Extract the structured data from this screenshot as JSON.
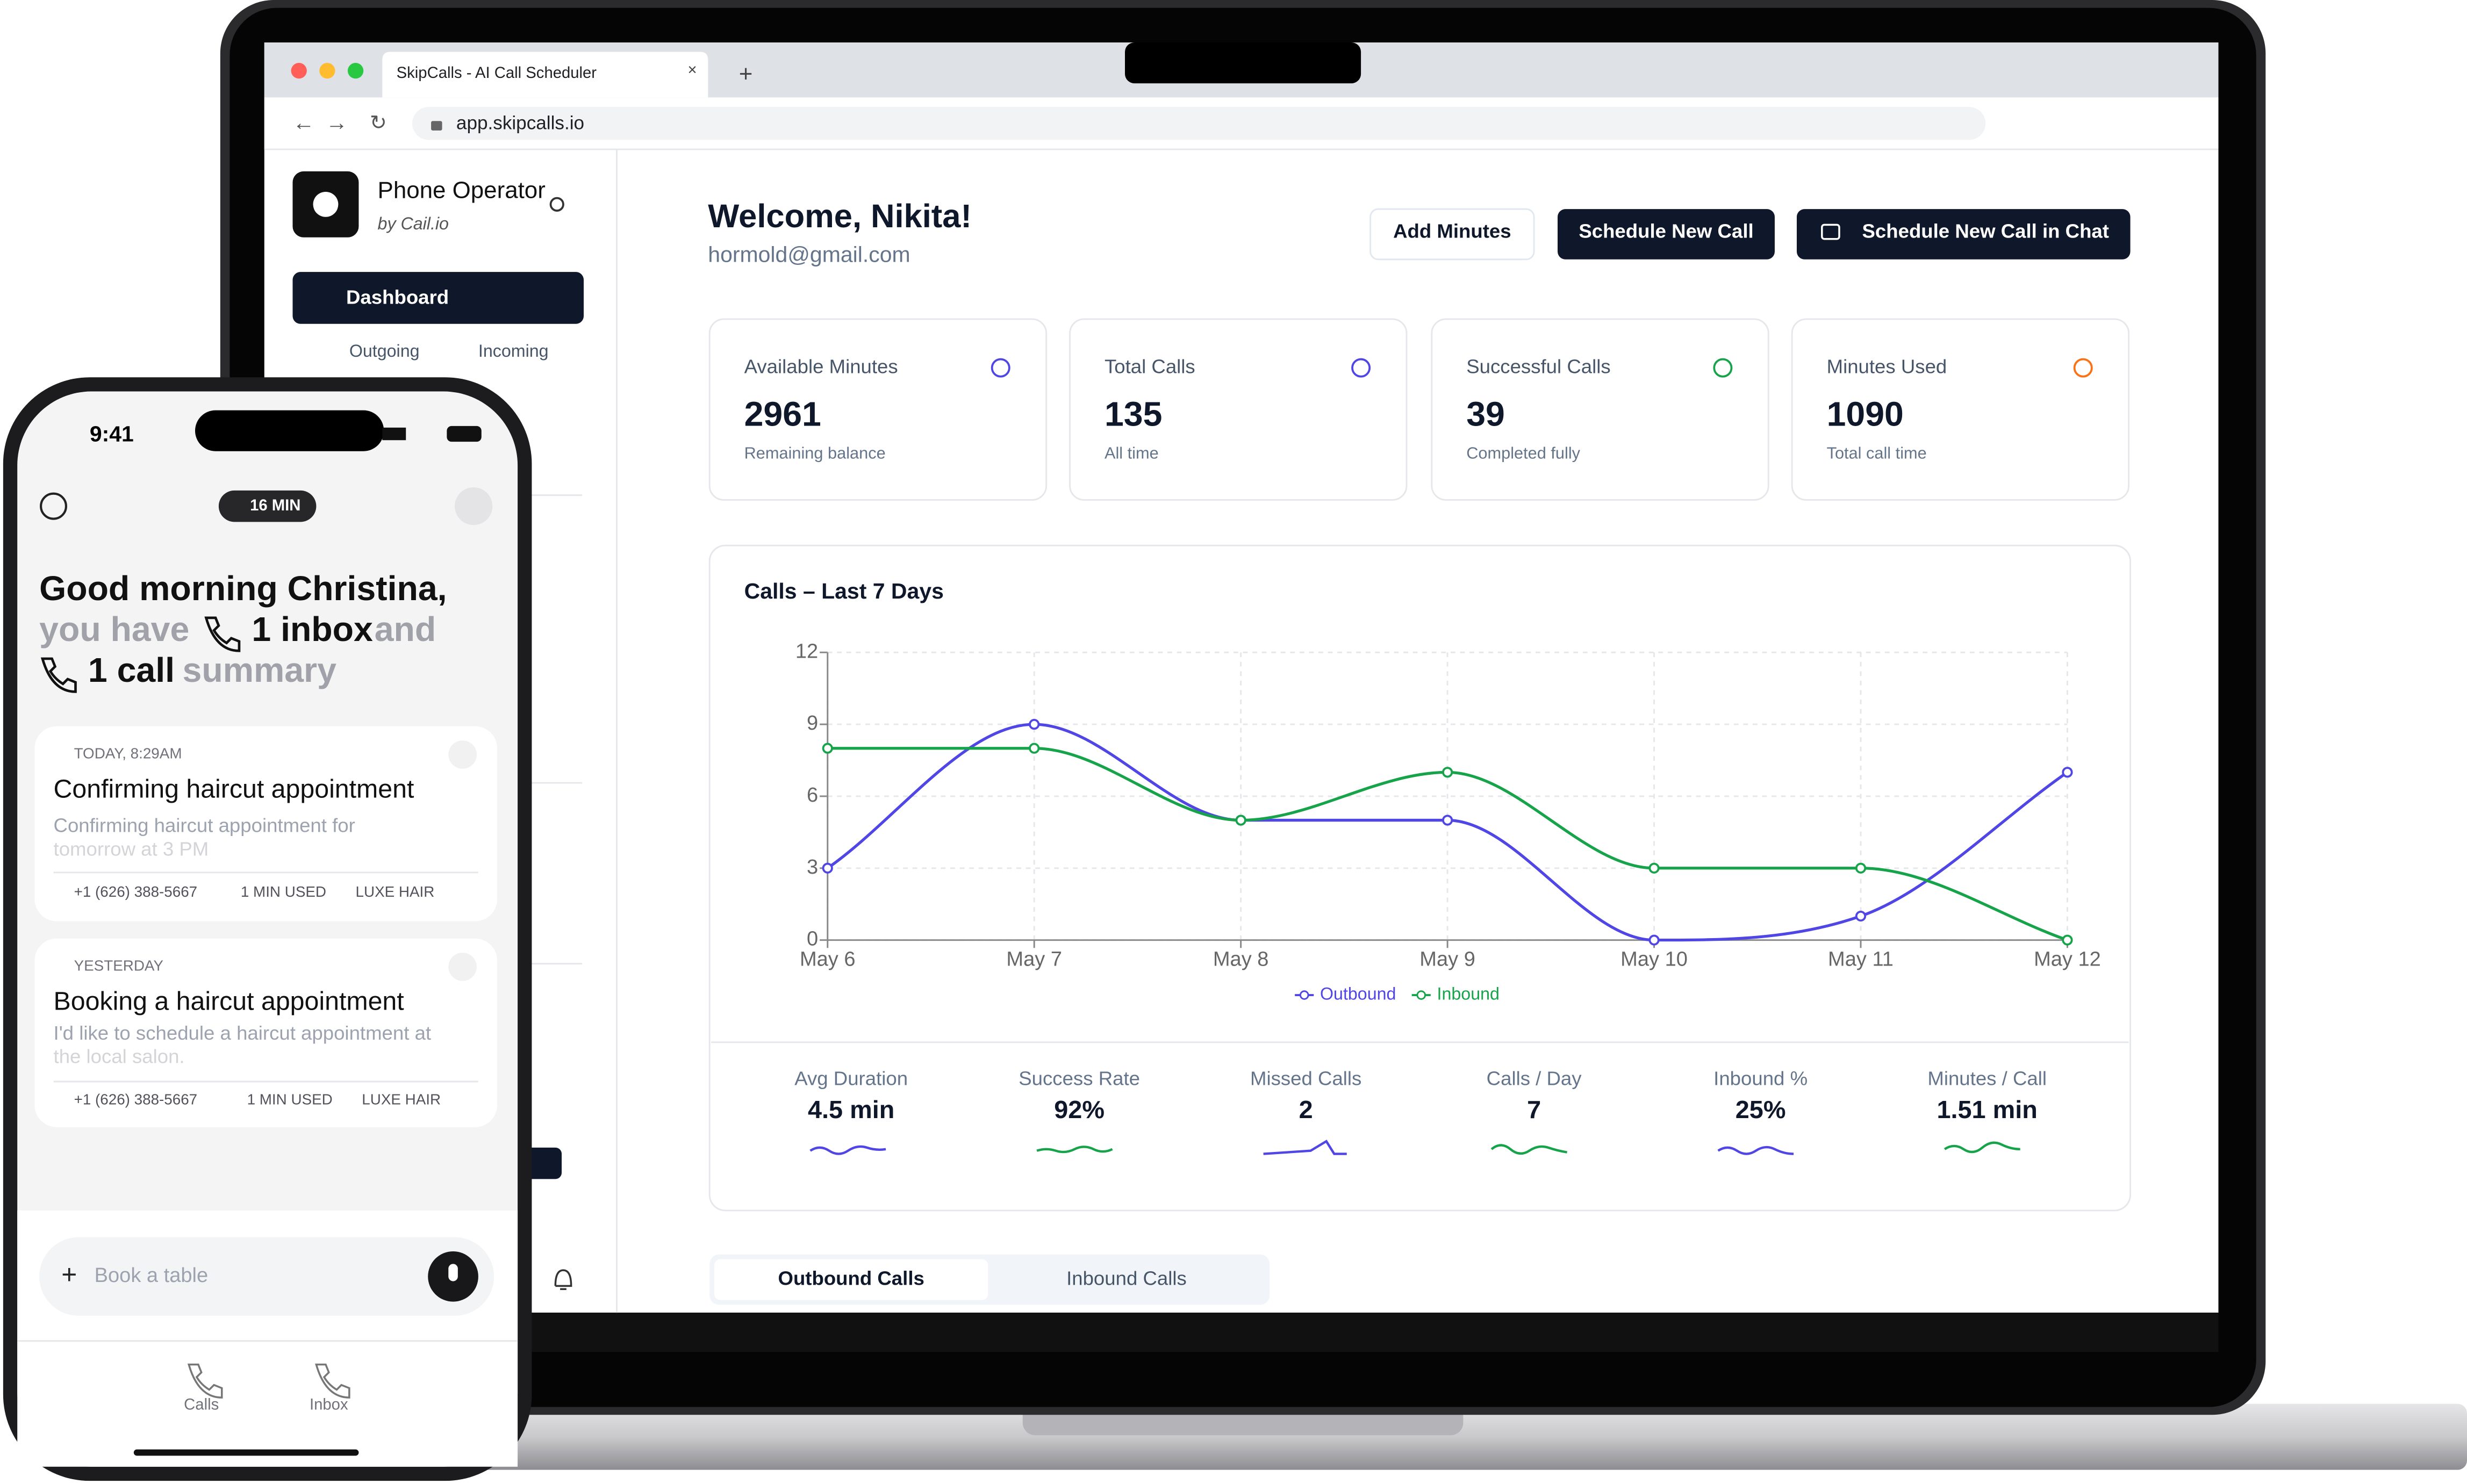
{
  "browser": {
    "tab_title": "SkipCalls - AI Call Scheduler",
    "url": "app.skipcalls.io"
  },
  "sidebar": {
    "brand": "Phone Operator",
    "brand_sub": "by Cail.io",
    "nav": [
      "Dashboard"
    ],
    "sub_nav": [
      "Outgoing",
      "Incoming"
    ]
  },
  "header": {
    "title": "Welcome, Nikita!",
    "email": "hormold@gmail.com",
    "buttons": [
      "Add Minutes",
      "Schedule New Call",
      "Schedule New Call in Chat"
    ]
  },
  "stats": [
    {
      "label": "Available Minutes",
      "value": 2961,
      "sub": "Remaining balance"
    },
    {
      "label": "Total Calls",
      "value": 135,
      "sub": "All time"
    },
    {
      "label": "Successful Calls",
      "value": 39,
      "sub": "Completed fully"
    },
    {
      "label": "Minutes Used",
      "value": 1090,
      "sub": "Total call time"
    }
  ],
  "chart_data": {
    "type": "line",
    "title": "Calls – Last 7 Days",
    "categories": [
      "May 6",
      "May 7",
      "May 8",
      "May 9",
      "May 10",
      "May 11",
      "May 12"
    ],
    "series": [
      {
        "name": "Outbound",
        "color": "#4f46e5",
        "values": [
          3,
          9,
          5,
          5,
          0,
          1,
          7
        ]
      },
      {
        "name": "Inbound",
        "color": "#16a34a",
        "values": [
          8,
          8,
          5,
          7,
          3,
          3,
          0
        ]
      }
    ],
    "ylim": [
      0,
      12
    ],
    "yticks": [
      0,
      3,
      6,
      9,
      12
    ],
    "grid": true,
    "legend": "bottom"
  },
  "metrics": [
    {
      "label": "Avg Duration",
      "value": "4.5 min"
    },
    {
      "label": "Success Rate",
      "value": "92%"
    },
    {
      "label": "Missed Calls",
      "value": "2"
    },
    {
      "label": "Calls / Day",
      "value": "7"
    },
    {
      "label": "Inbound %",
      "value": "25%"
    },
    {
      "label": "Minutes / Call",
      "value": "1.51 min"
    }
  ],
  "tabs": [
    "Outbound Calls",
    "Inbound Calls"
  ],
  "phone": {
    "time": "9:41",
    "badge": "16 MIN",
    "greeting": "Good morning Christina,",
    "line2": [
      "you have",
      "1 inbox",
      "and"
    ],
    "line3": [
      "1 call",
      "summary"
    ],
    "cards": [
      {
        "when": "TODAY, 8:29AM",
        "title": "Confirming haircut appointment",
        "preview": [
          "Confirming haircut appointment for",
          "tomorrow at 3 PM"
        ],
        "phone": "+1 (626) 388-5667",
        "used": "1 MIN USED",
        "place": "LUXE HAIR"
      },
      {
        "when": "YESTERDAY",
        "title": "Booking a haircut appointment",
        "preview": [
          "I'd like to schedule a haircut appointment at",
          "the local salon."
        ],
        "phone": "+1 (626) 388-5667",
        "used": "1 MIN USED",
        "place": "LUXE HAIR"
      }
    ],
    "input_placeholder": "Book a table",
    "nav": [
      "Calls",
      "Inbox"
    ]
  }
}
